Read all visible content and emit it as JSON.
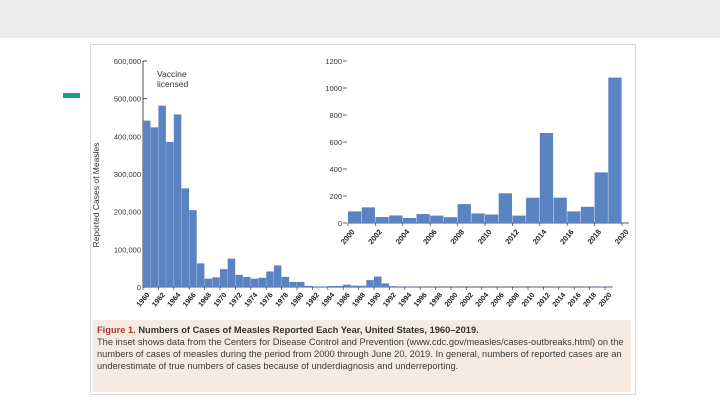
{
  "caption": {
    "figure_label": "Figure 1.",
    "title": "Numbers of Cases of Measles Reported Each Year, United States, 1960–2019.",
    "body": "The inset shows data from the Centers for Disease Control and Prevention (www.cdc.gov/measles/cases-outbreaks.html) on the numbers of cases of measles during the period from 2000 through June 20, 2019. In general, numbers of reported cases are an underestimate of true numbers of cases because of underdiagnosis and underreporting."
  },
  "colors": {
    "bar": "#5b83c2",
    "caption_bg": "#f6ebe2",
    "figure_label": "#b5332b",
    "accent": "#1f9a92",
    "topbar": "#ececec"
  },
  "chart_data": [
    {
      "type": "bar",
      "ylabel": "Reported Cases of Measles",
      "annotation": "Vaccine licensed",
      "ylim": [
        0,
        600000
      ],
      "yticks": [
        "0",
        "100,000",
        "200,000",
        "300,000",
        "400,000",
        "500,000",
        "600,000"
      ],
      "xticks": [
        "1960",
        "1962",
        "1964",
        "1966",
        "1968",
        "1970",
        "1972",
        "1974",
        "1976",
        "1978",
        "1980",
        "1982",
        "1984",
        "1986",
        "1988",
        "1990",
        "1992",
        "1994",
        "1996",
        "1998",
        "2000",
        "2002",
        "2004",
        "2006",
        "2008",
        "2010",
        "2012",
        "2014",
        "2016",
        "2018",
        "2020"
      ],
      "x": [
        1960,
        1961,
        1962,
        1963,
        1964,
        1965,
        1966,
        1967,
        1968,
        1969,
        1970,
        1971,
        1972,
        1973,
        1974,
        1975,
        1976,
        1977,
        1978,
        1979,
        1980,
        1981,
        1982,
        1983,
        1984,
        1985,
        1986,
        1987,
        1988,
        1989,
        1990,
        1991,
        1992,
        1993,
        1994,
        1995,
        1996,
        1997,
        1998,
        1999,
        2000,
        2001,
        2002,
        2003,
        2004,
        2005,
        2006,
        2007,
        2008,
        2009,
        2010,
        2011,
        2012,
        2013,
        2014,
        2015,
        2016,
        2017,
        2018,
        2019
      ],
      "values": [
        441700,
        423900,
        481500,
        385200,
        458100,
        261900,
        204100,
        62700,
        22200,
        25800,
        47400,
        75200,
        32300,
        26700,
        22100,
        24400,
        41100,
        57300,
        26900,
        13600,
        13500,
        3100,
        1700,
        1500,
        2600,
        2800,
        6300,
        3700,
        3400,
        18200,
        27800,
        9600,
        2200,
        300,
        1000,
        300,
        500,
        100,
        100,
        100,
        100,
        100,
        0,
        100,
        0,
        100,
        100,
        0,
        100,
        0,
        100,
        200,
        100,
        200,
        700,
        200,
        100,
        100,
        400,
        1000
      ]
    },
    {
      "type": "bar",
      "ylim": [
        0,
        1200
      ],
      "yticks": [
        "0",
        "200",
        "400",
        "600",
        "800",
        "1000",
        "1200"
      ],
      "xticks": [
        "2000",
        "2002",
        "2004",
        "2006",
        "2008",
        "2010",
        "2012",
        "2014",
        "2016",
        "2018",
        "2020"
      ],
      "x": [
        2000,
        2001,
        2002,
        2003,
        2004,
        2005,
        2006,
        2007,
        2008,
        2009,
        2010,
        2011,
        2012,
        2013,
        2014,
        2015,
        2016,
        2017,
        2018,
        2019
      ],
      "values": [
        86,
        116,
        44,
        56,
        37,
        66,
        55,
        43,
        140,
        71,
        63,
        220,
        55,
        187,
        667,
        188,
        86,
        120,
        375,
        1077
      ]
    }
  ]
}
